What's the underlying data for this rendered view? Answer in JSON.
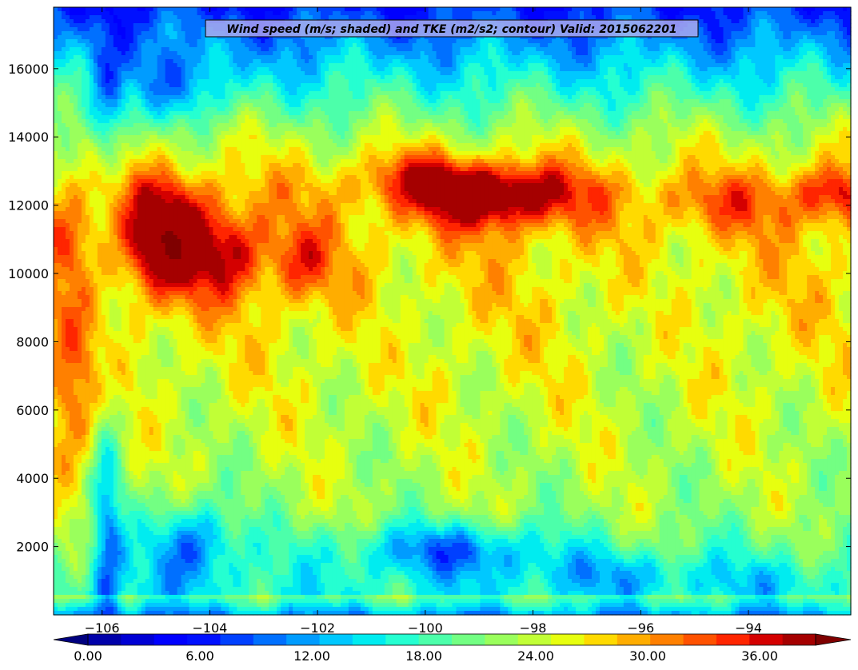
{
  "chart_data": {
    "type": "heatmap",
    "title": "Wind speed (m/s; shaded) and TKE (m2/s2; contour) Valid: 2015062201",
    "xlabel": "",
    "ylabel": "",
    "xlim": [
      -106.9,
      -92.1
    ],
    "ylim": [
      0,
      17800
    ],
    "x_ticks": [
      -106,
      -104,
      -102,
      -100,
      -98,
      -96,
      -94
    ],
    "x_tick_labels": [
      "−106",
      "−104",
      "−102",
      "−100",
      "−98",
      "−96",
      "−94"
    ],
    "y_ticks": [
      2000,
      4000,
      6000,
      8000,
      10000,
      12000,
      14000,
      16000
    ],
    "y_tick_labels": [
      "2000",
      "4000",
      "6000",
      "8000",
      "10000",
      "12000",
      "14000",
      "16000"
    ],
    "colorbar": {
      "min": 0,
      "max": 39,
      "step": 1.5,
      "tick_values": [
        0,
        6,
        12,
        18,
        24,
        30,
        36
      ],
      "tick_labels": [
        "0.00",
        "6.00",
        "12.00",
        "18.00",
        "24.00",
        "30.00",
        "36.00"
      ],
      "extend": "both",
      "colors": [
        "#00007f",
        "#0000a9",
        "#0000d4",
        "#0000ff",
        "#0010ff",
        "#0040ff",
        "#0070ff",
        "#009cff",
        "#00c8ff",
        "#00ecf0",
        "#25ffd1",
        "#4cffaa",
        "#73ff83",
        "#9aff5c",
        "#c1ff36",
        "#e7ff0f",
        "#ffda00",
        "#ffad00",
        "#ff8000",
        "#ff5200",
        "#ff2500",
        "#d40000",
        "#a50000",
        "#7f0000"
      ]
    },
    "features": [
      {
        "x": -104.8,
        "y": 11000,
        "sx": 0.55,
        "sy": 1100,
        "amp": 14
      },
      {
        "x": -103.6,
        "y": 10600,
        "sx": 0.5,
        "sy": 900,
        "amp": 8
      },
      {
        "x": -102.3,
        "y": 10300,
        "sx": 0.4,
        "sy": 800,
        "amp": 6
      },
      {
        "x": -98.7,
        "y": 12300,
        "sx": 1.1,
        "sy": 650,
        "amp": 13
      },
      {
        "x": -100.2,
        "y": 12900,
        "sx": 0.7,
        "sy": 500,
        "amp": 5
      },
      {
        "x": -92.4,
        "y": 12300,
        "sx": 0.6,
        "sy": 600,
        "amp": 7
      },
      {
        "x": -94.5,
        "y": 12000,
        "sx": 0.9,
        "sy": 600,
        "amp": 4
      },
      {
        "x": -106.6,
        "y": 6000,
        "sx": 0.35,
        "sy": 2000,
        "amp": 7
      },
      {
        "x": -106.6,
        "y": 11000,
        "sx": 0.3,
        "sy": 900,
        "amp": 5
      },
      {
        "x": -104.3,
        "y": 2100,
        "sx": 0.55,
        "sy": 900,
        "amp": -9
      },
      {
        "x": -99.5,
        "y": 1900,
        "sx": 1.3,
        "sy": 550,
        "amp": -8
      },
      {
        "x": -96.4,
        "y": 1200,
        "sx": 1.3,
        "sy": 450,
        "amp": -4
      },
      {
        "x": -93.5,
        "y": 1000,
        "sx": 0.9,
        "sy": 450,
        "amp": -2
      },
      {
        "x": -105.9,
        "y": 2000,
        "sx": 0.2,
        "sy": 3000,
        "amp": -8
      },
      {
        "x": -105.9,
        "y": 14700,
        "sx": 0.25,
        "sy": 1200,
        "amp": -8
      },
      {
        "x": -104.5,
        "y": 15500,
        "sx": 0.6,
        "sy": 700,
        "amp": -5
      },
      {
        "x": -100.5,
        "y": 8500,
        "sx": 0.4,
        "sy": 900,
        "amp": -2
      },
      {
        "x": -95.8,
        "y": 9000,
        "sx": 0.7,
        "sy": 1800,
        "amp": -2
      }
    ]
  }
}
